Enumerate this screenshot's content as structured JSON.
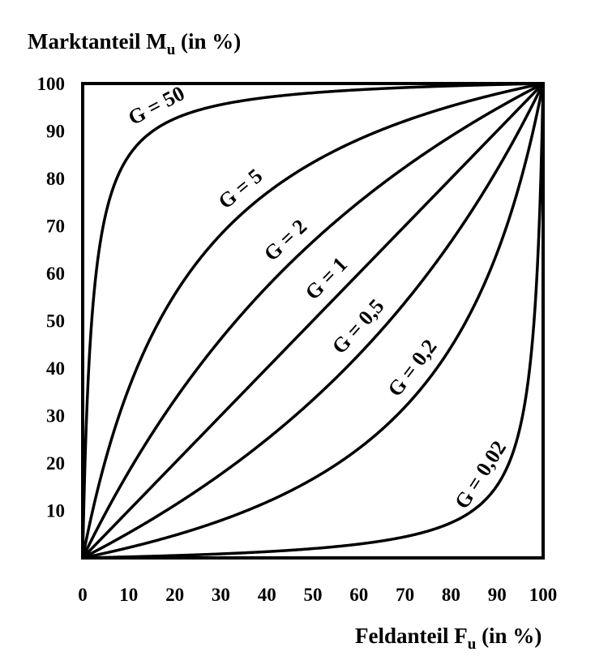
{
  "chart_data": {
    "type": "line",
    "ylabel_main": "Marktanteil M",
    "ylabel_sub": "u",
    "ylabel_suffix": " (in %)",
    "xlabel_main": "Feldanteil F",
    "xlabel_sub": "u",
    "xlabel_suffix": " (in %)",
    "xlim": [
      0,
      100
    ],
    "ylim": [
      0,
      100
    ],
    "x_ticks": [
      "0",
      "10",
      "20",
      "30",
      "40",
      "50",
      "60",
      "70",
      "80",
      "90",
      "100"
    ],
    "y_ticks": [
      "10",
      "20",
      "30",
      "40",
      "50",
      "60",
      "70",
      "80",
      "90",
      "100"
    ],
    "grid": false,
    "legend": "none",
    "series": [
      {
        "name": "G = 50",
        "G": 50
      },
      {
        "name": "G = 5",
        "G": 5
      },
      {
        "name": "G = 2",
        "G": 2
      },
      {
        "name": "G = 1",
        "G": 1
      },
      {
        "name": "G = 0,5",
        "G": 0.5
      },
      {
        "name": "G = 0,2",
        "G": 0.2
      },
      {
        "name": "G = 0,02",
        "G": 0.02
      }
    ]
  }
}
